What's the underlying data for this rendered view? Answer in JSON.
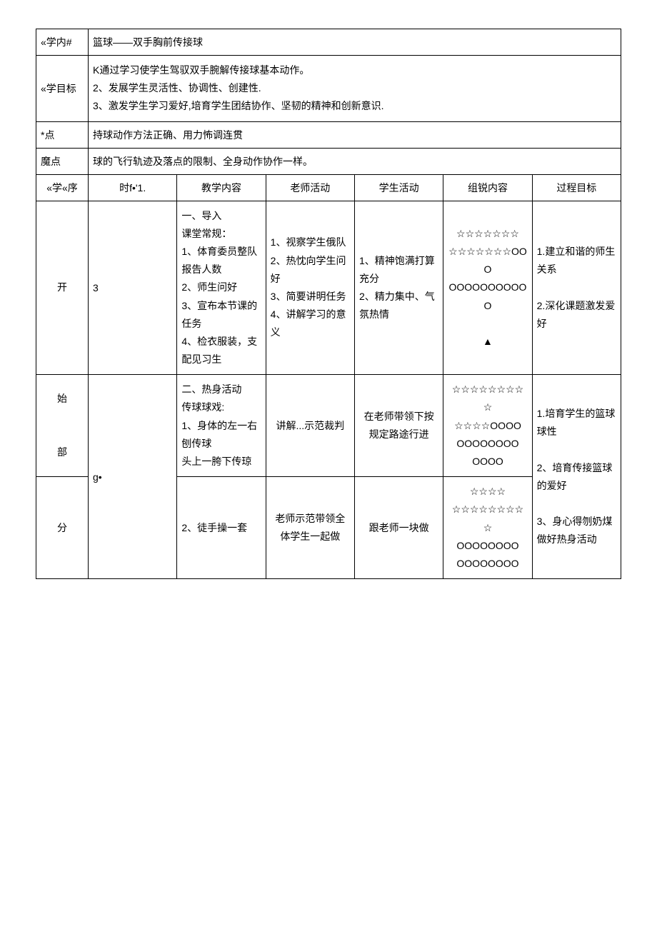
{
  "header": {
    "subject_label": "«学内#",
    "subject_value": "篮球——双手胸前传接球",
    "goal_label": "«学目标",
    "goal_value": "K通过学习使学生驾驭双手腕解传接球基本动作。\n2、发展学生灵活性、协调性、创建性.\n3、激发学生学习爱好,培育学生团结协作、坚韧的精神和创新意识.",
    "keypoint_label": "*点",
    "keypoint_value": "持球动作方法正确、用力怖调连贯",
    "difficulty_label": "魔点",
    "difficulty_value": "球的飞行轨迹及落点的限制、全身动作协作一样。"
  },
  "table_headers": {
    "seq": "«学«序",
    "time": "时f•'1.",
    "content": "教学内容",
    "teacher": "老师活动",
    "student": "学生活动",
    "formation": "组锐内容",
    "goal": "过程目标"
  },
  "rows": [
    {
      "seq": "开",
      "time": "3",
      "content": "一、导入\n课堂常规：\n1、体育委员整队报告人数\n2、师生问好\n3、宣布本节课的任务\n4、检衣服装，支配见习生",
      "teacher": "1、视察学生俄队\n2、热忱向学生问好\n3、简要讲明任务\n4、讲解学习的意义",
      "student": "1、精神饱满打算充分\n2、精力集中、气氛热情",
      "formation": "☆☆☆☆☆☆☆\n☆☆☆☆☆☆☆OOO\nOOOOOOOOOO\nO\n\n▲",
      "goal": "1.建立和谐的师生关系\n\n2.深化课题激发爱好"
    },
    {
      "seq": "始\n\n\n部",
      "time": "g•",
      "content": "二、热身活动\n传球球戏:\n1、身体的左一右刨传球\n头上一胯下传琼",
      "teacher": "讲解...示范裁判",
      "student": "在老师带领下按规定路途行进",
      "formation": "☆☆☆☆☆☆☆☆☆\n☆☆☆☆OOOO\nOOOOOOOO\nOOOO",
      "goal": "1.培育学生的篮球球性\n\n2、培育传接篮球的爱好"
    },
    {
      "seq": "分",
      "content": "2、徒手操一套",
      "teacher": "老师示范带领全体学生一起做",
      "student": "跟老师一块做",
      "formation": "☆☆☆☆\n☆☆☆☆☆☆☆☆☆\nOOOOOOOO\nOOOOOOOO",
      "goal": "3、身心得刎奶煤做好热身活动"
    }
  ]
}
